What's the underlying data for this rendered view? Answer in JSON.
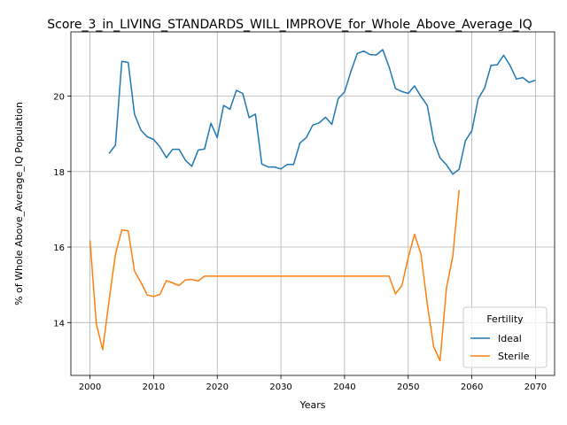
{
  "chart_data": {
    "type": "line",
    "title": "Score_3_in_LIVING_STANDARDS_WILL_IMPROVE_for_Whole_Above_Average_IQ",
    "xlabel": "Years",
    "ylabel": "% of Whole Above_Average_IQ Population",
    "xlim": [
      1997,
      2073
    ],
    "ylim": [
      12.6,
      21.7
    ],
    "xticks": [
      2000,
      2010,
      2020,
      2030,
      2040,
      2050,
      2060,
      2070
    ],
    "yticks": [
      14,
      16,
      18,
      20
    ],
    "grid": true,
    "legend": {
      "title": "Fertility",
      "position": "lower-right"
    },
    "series": [
      {
        "name": "Ideal",
        "color": "#1f77b4",
        "x": [
          2003,
          2004,
          2005,
          2006,
          2007,
          2008,
          2009,
          2010,
          2011,
          2012,
          2013,
          2014,
          2015,
          2016,
          2017,
          2018,
          2019,
          2020,
          2021,
          2022,
          2023,
          2024,
          2025,
          2026,
          2027,
          2028,
          2029,
          2030,
          2031,
          2032,
          2033,
          2034,
          2035,
          2036,
          2037,
          2038,
          2039,
          2040,
          2041,
          2042,
          2043,
          2044,
          2045,
          2046,
          2047,
          2048,
          2049,
          2050,
          2051,
          2052,
          2053,
          2054,
          2055,
          2056,
          2057,
          2058,
          2059,
          2060,
          2061,
          2062,
          2063,
          2064,
          2065,
          2066,
          2067,
          2068,
          2069,
          2070
        ],
        "y": [
          18.48,
          18.7,
          20.92,
          20.89,
          19.52,
          19.1,
          18.92,
          18.85,
          18.65,
          18.37,
          18.59,
          18.59,
          18.3,
          18.14,
          18.57,
          18.6,
          19.28,
          18.9,
          19.75,
          19.65,
          20.15,
          20.07,
          19.43,
          19.52,
          18.2,
          18.12,
          18.12,
          18.07,
          18.19,
          18.19,
          18.76,
          18.9,
          19.23,
          19.29,
          19.44,
          19.25,
          19.93,
          20.11,
          20.65,
          21.13,
          21.19,
          21.1,
          21.09,
          21.23,
          20.77,
          20.2,
          20.12,
          20.07,
          20.27,
          19.99,
          19.75,
          18.82,
          18.36,
          18.18,
          17.93,
          18.06,
          18.82,
          19.08,
          19.93,
          20.21,
          20.81,
          20.83,
          21.08,
          20.81,
          20.45,
          20.49,
          20.36,
          20.42
        ]
      },
      {
        "name": "Sterile",
        "color": "#ff7f0e",
        "x": [
          2000,
          2001,
          2002,
          2003,
          2004,
          2005,
          2006,
          2007,
          2008,
          2009,
          2010,
          2011,
          2012,
          2013,
          2014,
          2015,
          2016,
          2017,
          2018,
          2019,
          2020,
          2021,
          2022,
          2023,
          2024,
          2025,
          2026,
          2027,
          2028,
          2029,
          2030,
          2031,
          2032,
          2033,
          2034,
          2035,
          2036,
          2037,
          2038,
          2039,
          2040,
          2041,
          2042,
          2043,
          2044,
          2045,
          2046,
          2047,
          2048,
          2049,
          2050,
          2051,
          2052,
          2053,
          2054,
          2055,
          2056,
          2057,
          2058
        ],
        "y": [
          16.18,
          13.97,
          13.28,
          14.58,
          15.81,
          16.45,
          16.43,
          15.36,
          15.07,
          14.73,
          14.69,
          14.75,
          15.11,
          15.05,
          14.98,
          15.13,
          15.14,
          15.1,
          15.23,
          15.23,
          15.23,
          15.23,
          15.23,
          15.23,
          15.23,
          15.23,
          15.23,
          15.23,
          15.23,
          15.23,
          15.23,
          15.23,
          15.23,
          15.23,
          15.23,
          15.23,
          15.23,
          15.23,
          15.23,
          15.23,
          15.23,
          15.23,
          15.23,
          15.23,
          15.23,
          15.23,
          15.23,
          15.23,
          14.76,
          14.98,
          15.72,
          16.34,
          15.82,
          14.49,
          13.36,
          12.99,
          14.91,
          15.76,
          17.51
        ]
      }
    ]
  }
}
